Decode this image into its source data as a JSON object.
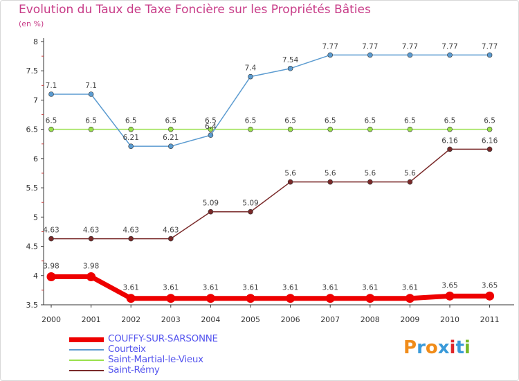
{
  "chart_data": {
    "type": "line",
    "title": "Evolution du Taux de Taxe Foncière sur les Propriétés Bâties",
    "ylabel": "(en %)",
    "xlabel": "",
    "ylim": [
      3.5,
      8
    ],
    "yticks": [
      "3.5",
      "4",
      "4.5",
      "5",
      "5.5",
      "6",
      "6.5",
      "7",
      "7.5",
      "8"
    ],
    "categories": [
      "2000",
      "2001",
      "2002",
      "2003",
      "2004",
      "2005",
      "2006",
      "2007",
      "2008",
      "2009",
      "2010",
      "2011"
    ],
    "series": [
      {
        "name": "COUFFY-SUR-SARSONNE",
        "color": "#ee0000",
        "values": [
          3.98,
          3.98,
          3.61,
          3.61,
          3.61,
          3.61,
          3.61,
          3.61,
          3.61,
          3.61,
          3.65,
          3.65
        ],
        "labels": [
          "3.98",
          "3.98",
          "3.61",
          "3.61",
          "3.61",
          "3.61",
          "3.61",
          "3.61",
          "3.61",
          "3.61",
          "3.65",
          "3.65"
        ]
      },
      {
        "name": "Courteix",
        "color": "#5b9bd0",
        "values": [
          7.1,
          7.1,
          6.21,
          6.21,
          6.4,
          7.4,
          7.54,
          7.77,
          7.77,
          7.77,
          7.77,
          7.77
        ],
        "labels": [
          "7.1",
          "7.1",
          "6.21",
          "6.21",
          "6.4",
          "7.4",
          "7.54",
          "7.77",
          "7.77",
          "7.77",
          "7.77",
          "7.77"
        ]
      },
      {
        "name": "Saint-Martial-le-Vieux",
        "color": "#99e04c",
        "values": [
          6.5,
          6.5,
          6.5,
          6.5,
          6.5,
          6.5,
          6.5,
          6.5,
          6.5,
          6.5,
          6.5,
          6.5
        ],
        "labels": [
          "6.5",
          "6.5",
          "6.5",
          "6.5",
          "6.5",
          "6.5",
          "6.5",
          "6.5",
          "6.5",
          "6.5",
          "6.5",
          "6.5"
        ]
      },
      {
        "name": "Saint-Rémy",
        "color": "#7a2a2a",
        "values": [
          4.63,
          4.63,
          4.63,
          4.63,
          5.09,
          5.09,
          5.6,
          5.6,
          5.6,
          5.6,
          6.16,
          6.16
        ],
        "labels": [
          "4.63",
          "4.63",
          "4.63",
          "4.63",
          "5.09",
          "5.09",
          "5.6",
          "5.6",
          "5.6",
          "5.6",
          "6.16",
          "6.16"
        ]
      }
    ],
    "grid": false,
    "legend_position": "bottom-left"
  },
  "logo": {
    "text": "Proxiti",
    "colors": [
      "#f08c1a",
      "#3a9ad9",
      "#f08c1a",
      "#3a9ad9",
      "#e0262a",
      "#3a9ad9",
      "#78b928"
    ]
  }
}
